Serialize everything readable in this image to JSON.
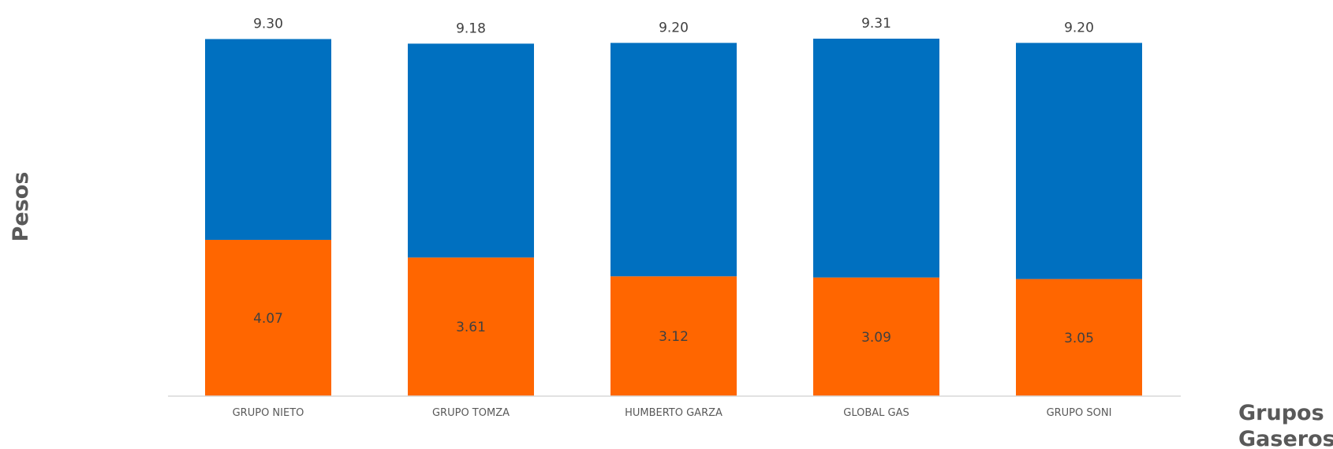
{
  "chart_data": {
    "type": "bar",
    "stacked": true,
    "categories": [
      "GRUPO NIETO",
      "GRUPO TOMZA",
      "HUMBERTO GARZA",
      "GLOBAL GAS",
      "GRUPO SONI"
    ],
    "series": [
      {
        "values": [
          4.07,
          3.61,
          3.12,
          3.09,
          3.05
        ],
        "color": "#FF6600",
        "labels": [
          "4.07",
          "3.61",
          "3.12",
          "3.09",
          "3.05"
        ]
      },
      {
        "values": [
          5.23,
          5.57,
          6.08,
          6.22,
          6.15
        ],
        "color": "#0070C0"
      }
    ],
    "totals": [
      9.3,
      9.18,
      9.2,
      9.31,
      9.2
    ],
    "total_labels": [
      "9.30",
      "9.18",
      "9.20",
      "9.31",
      "9.20"
    ],
    "xlabel": "Grupos Gaseros",
    "xlabel_lines": [
      "Grupos",
      "Gaseros"
    ],
    "ylabel": "Pesos",
    "ylim": [
      0,
      9.31
    ],
    "grid": false,
    "legend": "none"
  }
}
